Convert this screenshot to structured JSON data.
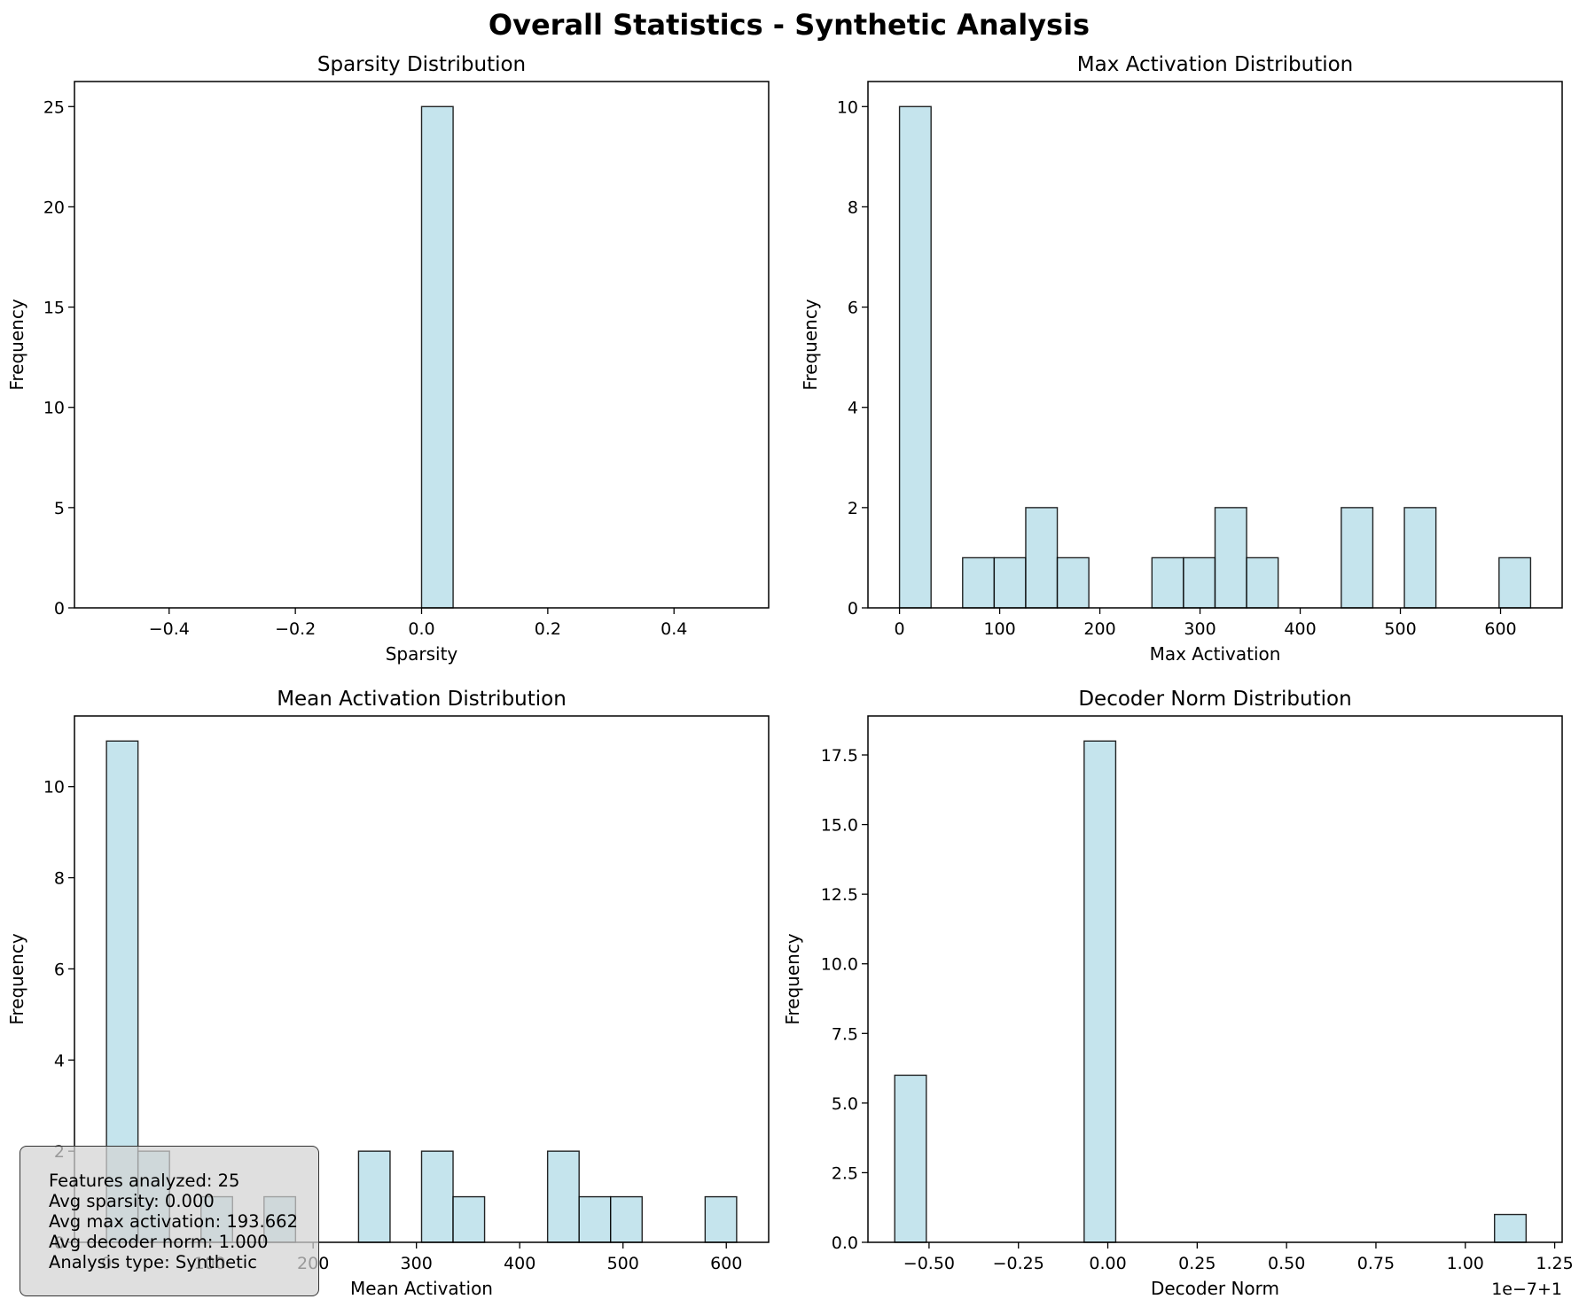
{
  "figure": {
    "title": "Overall Statistics - Synthetic Analysis"
  },
  "stats_box": {
    "lines": [
      "Features analyzed: 25",
      "Avg sparsity: 0.000",
      "Avg max activation: 193.662",
      "Avg decoder norm: 1.000",
      "Analysis type: Synthetic"
    ]
  },
  "colors": {
    "bar_fill": "#add8e6",
    "bar_edge": "#000000"
  },
  "chart_data": [
    {
      "type": "bar",
      "title": "Sparsity Distribution",
      "xlabel": "Sparsity",
      "ylabel": "Frequency",
      "xlim": [
        -0.55,
        0.55
      ],
      "ylim": [
        0,
        26.25
      ],
      "xticks": [
        -0.4,
        -0.2,
        0.0,
        0.2,
        0.4
      ],
      "xtick_labels": [
        "−0.4",
        "−0.2",
        "0.0",
        "0.2",
        "0.4"
      ],
      "yticks": [
        0,
        5,
        10,
        15,
        20,
        25
      ],
      "ytick_labels": [
        "0",
        "5",
        "10",
        "15",
        "20",
        "25"
      ],
      "bin_edges": [
        -0.5,
        -0.45,
        -0.4,
        -0.35,
        -0.3,
        -0.25,
        -0.2,
        -0.15,
        -0.1,
        -0.05,
        0.0,
        0.05,
        0.1,
        0.15,
        0.2,
        0.25,
        0.3,
        0.35,
        0.4,
        0.45,
        0.5
      ],
      "counts": [
        0,
        0,
        0,
        0,
        0,
        0,
        0,
        0,
        0,
        0,
        25,
        0,
        0,
        0,
        0,
        0,
        0,
        0,
        0,
        0
      ],
      "offset_label": ""
    },
    {
      "type": "bar",
      "title": "Max Activation Distribution",
      "xlabel": "Max Activation",
      "ylabel": "Frequency",
      "xlim": [
        -31.5,
        661.5
      ],
      "ylim": [
        0,
        10.5
      ],
      "xticks": [
        0,
        100,
        200,
        300,
        400,
        500,
        600
      ],
      "xtick_labels": [
        "0",
        "100",
        "200",
        "300",
        "400",
        "500",
        "600"
      ],
      "yticks": [
        0,
        2,
        4,
        6,
        8,
        10
      ],
      "ytick_labels": [
        "0",
        "2",
        "4",
        "6",
        "8",
        "10"
      ],
      "bin_edges": [
        0,
        31.5,
        63,
        94.5,
        126,
        157.5,
        189,
        220.5,
        252,
        283.5,
        315,
        346.5,
        378,
        409.5,
        441,
        472.5,
        504,
        535.5,
        567,
        598.5,
        630
      ],
      "counts": [
        10,
        0,
        1,
        1,
        2,
        1,
        0,
        0,
        1,
        1,
        2,
        1,
        0,
        0,
        2,
        0,
        2,
        0,
        0,
        1
      ],
      "offset_label": ""
    },
    {
      "type": "bar",
      "title": "Mean Activation Distribution",
      "xlabel": "Mean Activation",
      "ylabel": "Frequency",
      "xlim": [
        -31,
        641
      ],
      "ylim": [
        0,
        11.55
      ],
      "xticks": [
        0,
        100,
        200,
        300,
        400,
        500,
        600
      ],
      "xtick_labels": [
        "0",
        "100",
        "200",
        "300",
        "400",
        "500",
        "600"
      ],
      "yticks": [
        0,
        2,
        4,
        6,
        8,
        10
      ],
      "ytick_labels": [
        "0",
        "2",
        "4",
        "6",
        "8",
        "10"
      ],
      "bin_edges": [
        0,
        30.5,
        61,
        91.5,
        122,
        152.5,
        183,
        213.5,
        244,
        274.5,
        305,
        335.5,
        366,
        396.5,
        427,
        457.5,
        488,
        518.5,
        549,
        579.5,
        610
      ],
      "counts": [
        11,
        2,
        0,
        1,
        0,
        1,
        0,
        0,
        2,
        0,
        2,
        1,
        0,
        0,
        2,
        1,
        1,
        0,
        0,
        1
      ],
      "offset_label": ""
    },
    {
      "type": "bar",
      "title": "Decoder Norm Distribution",
      "xlabel": "Decoder Norm",
      "ylabel": "Frequency",
      "xlim": [
        -0.6709,
        1.2709
      ],
      "ylim": [
        0,
        18.9
      ],
      "xticks": [
        -0.5,
        -0.25,
        0.0,
        0.25,
        0.5,
        0.75,
        1.0,
        1.25
      ],
      "xtick_labels": [
        "−0.50",
        "−0.25",
        "0.00",
        "0.25",
        "0.50",
        "0.75",
        "1.00",
        "1.25"
      ],
      "yticks": [
        0,
        2.5,
        5,
        7.5,
        10,
        12.5,
        15,
        17.5
      ],
      "ytick_labels": [
        "0.0",
        "2.5",
        "5.0",
        "7.5",
        "10.0",
        "12.5",
        "15.0",
        "17.5"
      ],
      "bin_edges": [
        -0.596,
        -0.5077,
        -0.4194,
        -0.3311,
        -0.2428,
        -0.1545,
        -0.0662,
        0.0221,
        0.1104,
        0.1987,
        0.287,
        0.3753,
        0.4636,
        0.5519,
        0.6402,
        0.7285,
        0.8168,
        0.9051,
        0.9934,
        1.0817,
        1.17
      ],
      "counts": [
        6,
        0,
        0,
        0,
        0,
        0,
        18,
        0,
        0,
        0,
        0,
        0,
        0,
        0,
        0,
        0,
        0,
        0,
        0,
        1
      ],
      "offset_label": "1e−7+1"
    }
  ]
}
